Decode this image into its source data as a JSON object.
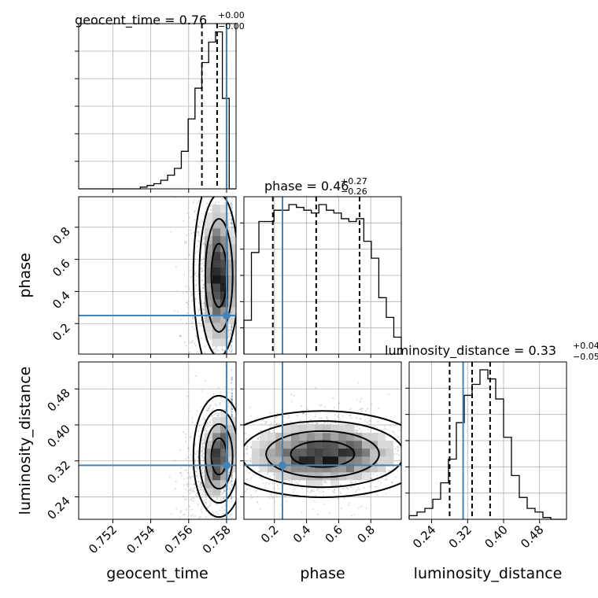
{
  "chart_data": {
    "type": "corner",
    "parameters": [
      "geocent_time",
      "phase",
      "luminosity_distance"
    ],
    "truths": {
      "geocent_time": 0.758,
      "phase": 0.25,
      "luminosity_distance": 0.31
    },
    "ranges": {
      "geocent_time": [
        0.7502,
        0.7585
      ],
      "phase": [
        0.01,
        0.99
      ],
      "luminosity_distance": [
        0.19,
        0.54
      ]
    },
    "ticks": {
      "geocent_time": [
        "0.752",
        "0.754",
        "0.756",
        "0.758"
      ],
      "phase": [
        "0.2",
        "0.4",
        "0.6",
        "0.8"
      ],
      "luminosity_distance": [
        "0.24",
        "0.32",
        "0.40",
        "0.48"
      ]
    },
    "tick_values": {
      "geocent_time": [
        0.752,
        0.754,
        0.756,
        0.758
      ],
      "phase": [
        0.2,
        0.4,
        0.6,
        0.8
      ],
      "luminosity_distance": [
        0.24,
        0.32,
        0.4,
        0.48
      ]
    },
    "titles": {
      "geocent_time": {
        "main": "geocent_time = 0.76",
        "plus": "+0.00",
        "minus": "−0.00"
      },
      "phase": {
        "main": "phase = 0.46",
        "plus": "+0.27",
        "minus": "−0.26"
      },
      "luminosity_distance": {
        "main": "luminosity_distance = 0.33",
        "plus": "+0.04",
        "minus": "−0.05"
      }
    },
    "quantiles": {
      "geocent_time": [
        0.7567,
        0.7575,
        0.758
      ],
      "phase": [
        0.19,
        0.46,
        0.73
      ],
      "luminosity_distance": [
        0.28,
        0.33,
        0.37
      ]
    },
    "histograms": {
      "geocent_time": {
        "min": 0.7502,
        "max": 0.7585,
        "counts": [
          0,
          0,
          0,
          0,
          0,
          0,
          0,
          0,
          0,
          1,
          2,
          3,
          5,
          8,
          12,
          22,
          41,
          59,
          74,
          86,
          92,
          53,
          0
        ]
      },
      "phase": {
        "min": 0.01,
        "max": 0.99,
        "counts": [
          12,
          36,
          47,
          47,
          51,
          51,
          53,
          52,
          51,
          50,
          53,
          51,
          50,
          48,
          47,
          48,
          40,
          34,
          20,
          13,
          6
        ]
      },
      "luminosity_distance": {
        "min": 0.19,
        "max": 0.54,
        "counts": [
          2,
          4,
          6,
          11,
          20,
          33,
          53,
          68,
          74,
          82,
          77,
          66,
          45,
          24,
          12,
          6,
          4,
          1,
          0,
          0
        ]
      }
    }
  }
}
